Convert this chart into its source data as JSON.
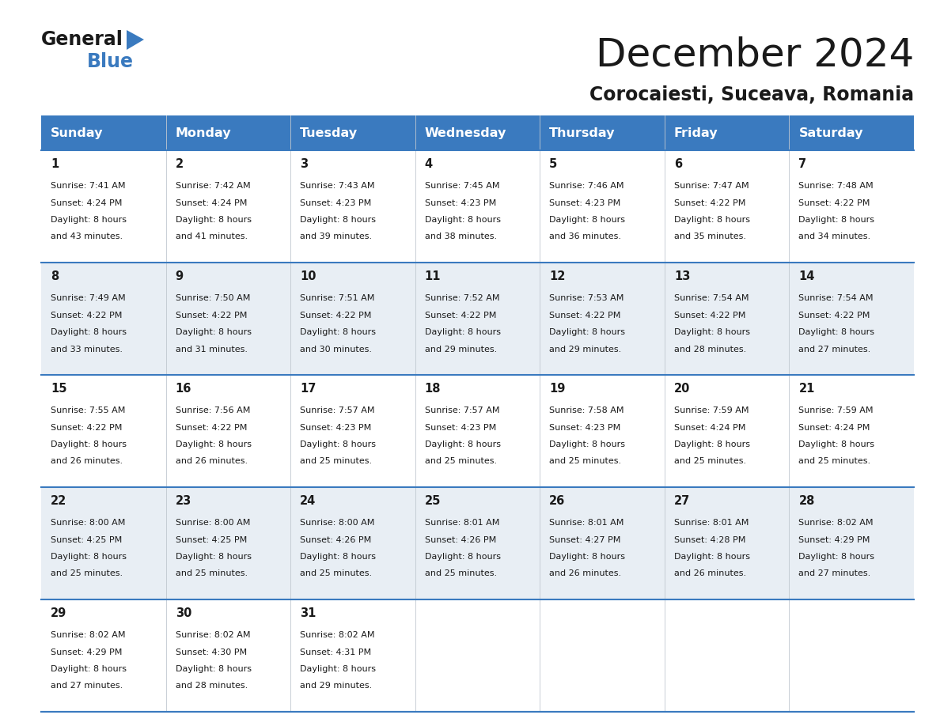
{
  "title": "December 2024",
  "subtitle": "Corocaiesti, Suceava, Romania",
  "header_bg": "#3a7abf",
  "header_text": "#ffffff",
  "row_bg": [
    "#ffffff",
    "#e8eef4"
  ],
  "border_color": "#3a7abf",
  "cell_border_color": "#cccccc",
  "days_of_week": [
    "Sunday",
    "Monday",
    "Tuesday",
    "Wednesday",
    "Thursday",
    "Friday",
    "Saturday"
  ],
  "calendar_data": [
    [
      {
        "day": 1,
        "sunrise": "7:41 AM",
        "sunset": "4:24 PM",
        "daylight_h": "8 hours",
        "daylight_m": "and 43 minutes."
      },
      {
        "day": 2,
        "sunrise": "7:42 AM",
        "sunset": "4:24 PM",
        "daylight_h": "8 hours",
        "daylight_m": "and 41 minutes."
      },
      {
        "day": 3,
        "sunrise": "7:43 AM",
        "sunset": "4:23 PM",
        "daylight_h": "8 hours",
        "daylight_m": "and 39 minutes."
      },
      {
        "day": 4,
        "sunrise": "7:45 AM",
        "sunset": "4:23 PM",
        "daylight_h": "8 hours",
        "daylight_m": "and 38 minutes."
      },
      {
        "day": 5,
        "sunrise": "7:46 AM",
        "sunset": "4:23 PM",
        "daylight_h": "8 hours",
        "daylight_m": "and 36 minutes."
      },
      {
        "day": 6,
        "sunrise": "7:47 AM",
        "sunset": "4:22 PM",
        "daylight_h": "8 hours",
        "daylight_m": "and 35 minutes."
      },
      {
        "day": 7,
        "sunrise": "7:48 AM",
        "sunset": "4:22 PM",
        "daylight_h": "8 hours",
        "daylight_m": "and 34 minutes."
      }
    ],
    [
      {
        "day": 8,
        "sunrise": "7:49 AM",
        "sunset": "4:22 PM",
        "daylight_h": "8 hours",
        "daylight_m": "and 33 minutes."
      },
      {
        "day": 9,
        "sunrise": "7:50 AM",
        "sunset": "4:22 PM",
        "daylight_h": "8 hours",
        "daylight_m": "and 31 minutes."
      },
      {
        "day": 10,
        "sunrise": "7:51 AM",
        "sunset": "4:22 PM",
        "daylight_h": "8 hours",
        "daylight_m": "and 30 minutes."
      },
      {
        "day": 11,
        "sunrise": "7:52 AM",
        "sunset": "4:22 PM",
        "daylight_h": "8 hours",
        "daylight_m": "and 29 minutes."
      },
      {
        "day": 12,
        "sunrise": "7:53 AM",
        "sunset": "4:22 PM",
        "daylight_h": "8 hours",
        "daylight_m": "and 29 minutes."
      },
      {
        "day": 13,
        "sunrise": "7:54 AM",
        "sunset": "4:22 PM",
        "daylight_h": "8 hours",
        "daylight_m": "and 28 minutes."
      },
      {
        "day": 14,
        "sunrise": "7:54 AM",
        "sunset": "4:22 PM",
        "daylight_h": "8 hours",
        "daylight_m": "and 27 minutes."
      }
    ],
    [
      {
        "day": 15,
        "sunrise": "7:55 AM",
        "sunset": "4:22 PM",
        "daylight_h": "8 hours",
        "daylight_m": "and 26 minutes."
      },
      {
        "day": 16,
        "sunrise": "7:56 AM",
        "sunset": "4:22 PM",
        "daylight_h": "8 hours",
        "daylight_m": "and 26 minutes."
      },
      {
        "day": 17,
        "sunrise": "7:57 AM",
        "sunset": "4:23 PM",
        "daylight_h": "8 hours",
        "daylight_m": "and 25 minutes."
      },
      {
        "day": 18,
        "sunrise": "7:57 AM",
        "sunset": "4:23 PM",
        "daylight_h": "8 hours",
        "daylight_m": "and 25 minutes."
      },
      {
        "day": 19,
        "sunrise": "7:58 AM",
        "sunset": "4:23 PM",
        "daylight_h": "8 hours",
        "daylight_m": "and 25 minutes."
      },
      {
        "day": 20,
        "sunrise": "7:59 AM",
        "sunset": "4:24 PM",
        "daylight_h": "8 hours",
        "daylight_m": "and 25 minutes."
      },
      {
        "day": 21,
        "sunrise": "7:59 AM",
        "sunset": "4:24 PM",
        "daylight_h": "8 hours",
        "daylight_m": "and 25 minutes."
      }
    ],
    [
      {
        "day": 22,
        "sunrise": "8:00 AM",
        "sunset": "4:25 PM",
        "daylight_h": "8 hours",
        "daylight_m": "and 25 minutes."
      },
      {
        "day": 23,
        "sunrise": "8:00 AM",
        "sunset": "4:25 PM",
        "daylight_h": "8 hours",
        "daylight_m": "and 25 minutes."
      },
      {
        "day": 24,
        "sunrise": "8:00 AM",
        "sunset": "4:26 PM",
        "daylight_h": "8 hours",
        "daylight_m": "and 25 minutes."
      },
      {
        "day": 25,
        "sunrise": "8:01 AM",
        "sunset": "4:26 PM",
        "daylight_h": "8 hours",
        "daylight_m": "and 25 minutes."
      },
      {
        "day": 26,
        "sunrise": "8:01 AM",
        "sunset": "4:27 PM",
        "daylight_h": "8 hours",
        "daylight_m": "and 26 minutes."
      },
      {
        "day": 27,
        "sunrise": "8:01 AM",
        "sunset": "4:28 PM",
        "daylight_h": "8 hours",
        "daylight_m": "and 26 minutes."
      },
      {
        "day": 28,
        "sunrise": "8:02 AM",
        "sunset": "4:29 PM",
        "daylight_h": "8 hours",
        "daylight_m": "and 27 minutes."
      }
    ],
    [
      {
        "day": 29,
        "sunrise": "8:02 AM",
        "sunset": "4:29 PM",
        "daylight_h": "8 hours",
        "daylight_m": "and 27 minutes."
      },
      {
        "day": 30,
        "sunrise": "8:02 AM",
        "sunset": "4:30 PM",
        "daylight_h": "8 hours",
        "daylight_m": "and 28 minutes."
      },
      {
        "day": 31,
        "sunrise": "8:02 AM",
        "sunset": "4:31 PM",
        "daylight_h": "8 hours",
        "daylight_m": "and 29 minutes."
      },
      null,
      null,
      null,
      null
    ]
  ]
}
